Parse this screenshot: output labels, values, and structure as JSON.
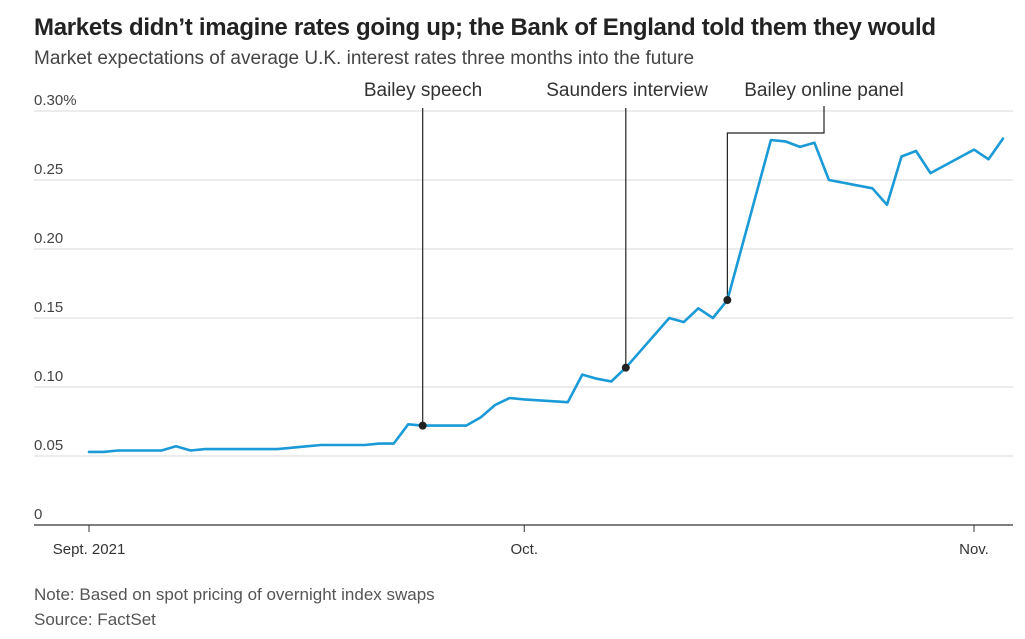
{
  "header": {
    "title": "Markets didn’t imagine rates going up; the Bank of England told them they would",
    "subtitle": "Market expectations of average U.K. interest rates three months into the future"
  },
  "footer": {
    "note": "Note: Based on spot pricing of overnight index swaps",
    "source": "Source: FactSet"
  },
  "colors": {
    "line": "#1a9ad6",
    "grid": "#d9d9d9",
    "axis": "#333333",
    "annotation": "#222222"
  },
  "chart_data": {
    "type": "line",
    "title": "Markets didn’t imagine rates going up; the Bank of England told them they would",
    "subtitle": "Market expectations of average U.K. interest rates three months into the future",
    "xlabel": "",
    "ylabel": "",
    "x_range": [
      "2021-09-01",
      "2021-11-03"
    ],
    "ylim": [
      0,
      0.3
    ],
    "grid": true,
    "legend": "none",
    "y_ticks": [
      {
        "value": 0,
        "label": "0"
      },
      {
        "value": 0.05,
        "label": "0.05"
      },
      {
        "value": 0.1,
        "label": "0.10"
      },
      {
        "value": 0.15,
        "label": "0.15"
      },
      {
        "value": 0.2,
        "label": "0.20"
      },
      {
        "value": 0.25,
        "label": "0.25"
      },
      {
        "value": 0.3,
        "label": "0.30%"
      }
    ],
    "x_ticks": [
      {
        "date": "2021-09-01",
        "label": "Sept. 2021"
      },
      {
        "date": "2021-10-01",
        "label": "Oct."
      },
      {
        "date": "2021-11-01",
        "label": "Nov."
      }
    ],
    "series": [
      {
        "points": [
          [
            "2021-09-01",
            0.053
          ],
          [
            "2021-09-02",
            0.053
          ],
          [
            "2021-09-03",
            0.054
          ],
          [
            "2021-09-06",
            0.054
          ],
          [
            "2021-09-07",
            0.057
          ],
          [
            "2021-09-08",
            0.054
          ],
          [
            "2021-09-09",
            0.055
          ],
          [
            "2021-09-14",
            0.055
          ],
          [
            "2021-09-15",
            0.056
          ],
          [
            "2021-09-16",
            0.057
          ],
          [
            "2021-09-17",
            0.058
          ],
          [
            "2021-09-20",
            0.058
          ],
          [
            "2021-09-21",
            0.059
          ],
          [
            "2021-09-22",
            0.059
          ],
          [
            "2021-09-23",
            0.073
          ],
          [
            "2021-09-24",
            0.072
          ],
          [
            "2021-09-27",
            0.072
          ],
          [
            "2021-09-28",
            0.078
          ],
          [
            "2021-09-29",
            0.087
          ],
          [
            "2021-09-30",
            0.092
          ],
          [
            "2021-10-01",
            0.091
          ],
          [
            "2021-10-04",
            0.089
          ],
          [
            "2021-10-05",
            0.109
          ],
          [
            "2021-10-06",
            0.106
          ],
          [
            "2021-10-07",
            0.104
          ],
          [
            "2021-10-08",
            0.114
          ],
          [
            "2021-10-11",
            0.15
          ],
          [
            "2021-10-12",
            0.147
          ],
          [
            "2021-10-13",
            0.157
          ],
          [
            "2021-10-14",
            0.15
          ],
          [
            "2021-10-15",
            0.163
          ],
          [
            "2021-10-18",
            0.279
          ],
          [
            "2021-10-19",
            0.278
          ],
          [
            "2021-10-20",
            0.274
          ],
          [
            "2021-10-21",
            0.277
          ],
          [
            "2021-10-22",
            0.25
          ],
          [
            "2021-10-25",
            0.244
          ],
          [
            "2021-10-26",
            0.232
          ],
          [
            "2021-10-27",
            0.267
          ],
          [
            "2021-10-28",
            0.271
          ],
          [
            "2021-10-29",
            0.255
          ],
          [
            "2021-11-01",
            0.272
          ],
          [
            "2021-11-02",
            0.265
          ],
          [
            "2021-11-03",
            0.28
          ]
        ]
      }
    ],
    "annotations": [
      {
        "label": "Bailey speech",
        "date": "2021-09-24",
        "value": 0.072
      },
      {
        "label": "Saunders interview",
        "date": "2021-10-08",
        "value": 0.114
      },
      {
        "label": "Bailey online panel",
        "date": "2021-10-15",
        "value": 0.163
      }
    ]
  }
}
